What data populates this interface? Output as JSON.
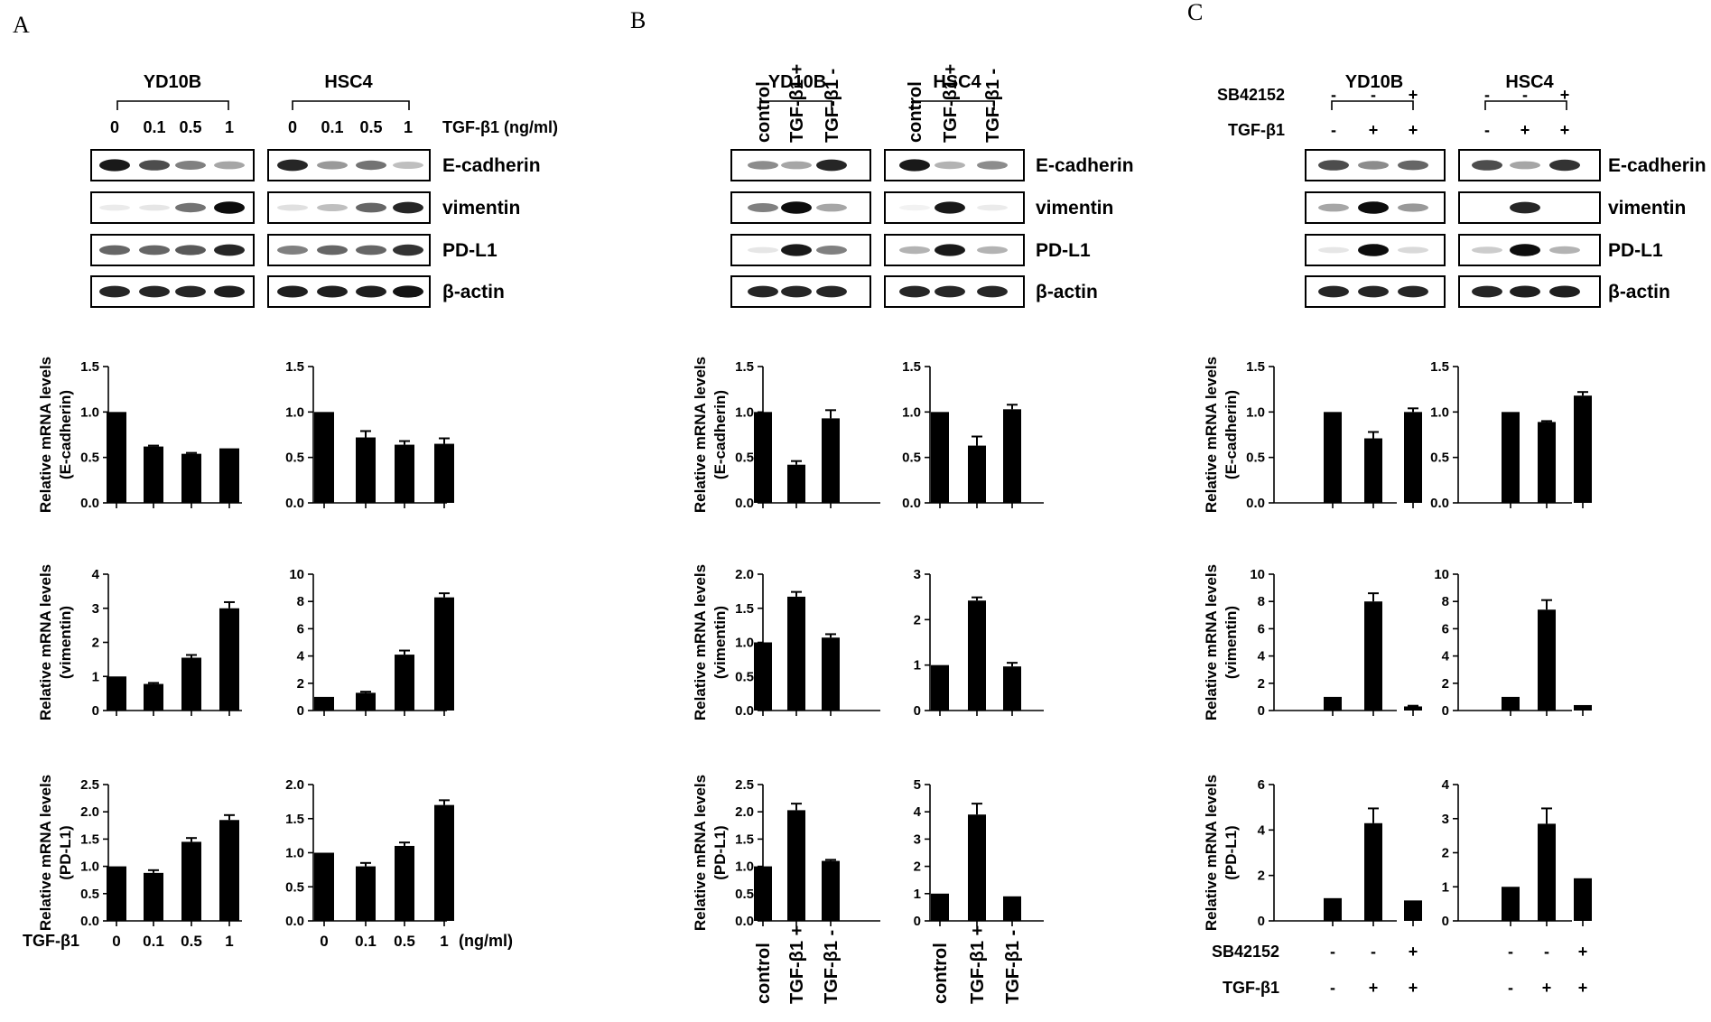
{
  "panels": [
    {
      "letter": "A",
      "celllines": [
        "YD10B",
        "HSC4"
      ],
      "header": {
        "kind": "dose",
        "row_label": "TGF-β1 (ng/ml)",
        "values": [
          "0",
          "0.1",
          "0.5",
          "1"
        ]
      },
      "blot_labels": [
        "E-cadherin",
        "vimentin",
        "PD-L1",
        "β-actin"
      ],
      "footer": {
        "kind": "dose",
        "left_label": "TGF-β1",
        "values": [
          "0",
          "0.1",
          "0.5",
          "1"
        ],
        "unit": "(ng/ml)"
      }
    },
    {
      "letter": "B",
      "celllines": [
        "YD10B",
        "HSC4"
      ],
      "header": {
        "kind": "rotated",
        "values": [
          "control",
          "TGF-β1 +",
          "TGF-β1 -"
        ]
      },
      "blot_labels": [
        "E-cadherin",
        "vimentin",
        "PD-L1",
        "β-actin"
      ],
      "footer": {
        "kind": "rotated",
        "values": [
          "control",
          "TGF-β1 +",
          "TGF-β1 -"
        ]
      }
    },
    {
      "letter": "C",
      "celllines": [
        "YD10B",
        "HSC4"
      ],
      "header": {
        "kind": "rows",
        "rows": [
          {
            "label": "SB42152",
            "values": [
              "-",
              "-",
              "+"
            ]
          },
          {
            "label": "TGF-β1",
            "values": [
              "-",
              "+",
              "+"
            ]
          }
        ]
      },
      "blot_labels": [
        "E-cadherin",
        "vimentin",
        "PD-L1",
        "β-actin"
      ],
      "footer": {
        "kind": "rows",
        "rows": [
          {
            "label": "SB42152",
            "values": [
              "-",
              "-",
              "+"
            ]
          },
          {
            "label": "TGF-β1",
            "values": [
              "-",
              "+",
              "+"
            ]
          }
        ]
      }
    }
  ],
  "chart_data": [
    {
      "type": "bar",
      "panel": "A",
      "cell_line": "YD10B",
      "ylabel_lines": [
        "Relative mRNA levels",
        "(E-cadherin)"
      ],
      "categories": [
        "0",
        "0.1",
        "0.5",
        "1"
      ],
      "values": [
        1.0,
        0.62,
        0.54,
        0.6
      ],
      "errors": [
        0,
        0.01,
        0.01,
        0
      ],
      "ylim": [
        0,
        1.5
      ],
      "yticks": [
        "0.0",
        "0.5",
        "1.0",
        "1.5"
      ]
    },
    {
      "type": "bar",
      "panel": "A",
      "cell_line": "HSC4",
      "ylabel_lines": [
        "Relative mRNA levels",
        "(E-cadherin)"
      ],
      "categories": [
        "0",
        "0.1",
        "0.5",
        "1"
      ],
      "values": [
        1.0,
        0.72,
        0.64,
        0.65
      ],
      "errors": [
        0,
        0.07,
        0.04,
        0.06
      ],
      "ylim": [
        0,
        1.5
      ],
      "yticks": [
        "0.0",
        "0.5",
        "1.0",
        "1.5"
      ]
    },
    {
      "type": "bar",
      "panel": "A",
      "cell_line": "YD10B",
      "ylabel_lines": [
        "Relative mRNA levels",
        "(vimentin)"
      ],
      "categories": [
        "0",
        "0.1",
        "0.5",
        "1"
      ],
      "values": [
        1.0,
        0.78,
        1.55,
        3.0
      ],
      "errors": [
        0,
        0.03,
        0.08,
        0.18
      ],
      "ylim": [
        0,
        4
      ],
      "yticks": [
        "0",
        "1",
        "2",
        "3",
        "4"
      ]
    },
    {
      "type": "bar",
      "panel": "A",
      "cell_line": "HSC4",
      "ylabel_lines": [
        "Relative mRNA levels",
        "(vimentin)"
      ],
      "categories": [
        "0",
        "0.1",
        "0.5",
        "1"
      ],
      "values": [
        1.0,
        1.3,
        4.1,
        8.3
      ],
      "errors": [
        0,
        0.08,
        0.3,
        0.3
      ],
      "ylim": [
        0,
        10
      ],
      "yticks": [
        "0",
        "2",
        "4",
        "6",
        "8",
        "10"
      ]
    },
    {
      "type": "bar",
      "panel": "A",
      "cell_line": "YD10B",
      "ylabel_lines": [
        "Relative mRNA levels",
        "(PD-L1)"
      ],
      "categories": [
        "0",
        "0.1",
        "0.5",
        "1"
      ],
      "values": [
        1.0,
        0.88,
        1.45,
        1.85
      ],
      "errors": [
        0,
        0.05,
        0.07,
        0.09
      ],
      "ylim": [
        0,
        2.5
      ],
      "yticks": [
        "0.0",
        "0.5",
        "1.0",
        "1.5",
        "2.0",
        "2.5"
      ]
    },
    {
      "type": "bar",
      "panel": "A",
      "cell_line": "HSC4",
      "ylabel_lines": [
        "Relative mRNA levels",
        "(PD-L1)"
      ],
      "categories": [
        "0",
        "0.1",
        "0.5",
        "1"
      ],
      "values": [
        1.0,
        0.8,
        1.1,
        1.7
      ],
      "errors": [
        0,
        0.05,
        0.05,
        0.07
      ],
      "ylim": [
        0,
        2.0
      ],
      "yticks": [
        "0.0",
        "0.5",
        "1.0",
        "1.5",
        "2.0"
      ]
    },
    {
      "type": "bar",
      "panel": "B",
      "cell_line": "YD10B",
      "ylabel_lines": [
        "Relative mRNA levels",
        "(E-cadherin)"
      ],
      "categories": [
        "control",
        "TGF-β1 +",
        "TGF-β1 -"
      ],
      "values": [
        1.0,
        0.42,
        0.93
      ],
      "errors": [
        0,
        0.04,
        0.09
      ],
      "ylim": [
        0,
        1.5
      ],
      "yticks": [
        "0.0",
        "0.5",
        "1.0",
        "1.5"
      ]
    },
    {
      "type": "bar",
      "panel": "B",
      "cell_line": "HSC4",
      "ylabel_lines": [
        "Relative mRNA levels",
        "(E-cadherin)"
      ],
      "categories": [
        "control",
        "TGF-β1 +",
        "TGF-β1 -"
      ],
      "values": [
        1.0,
        0.63,
        1.03
      ],
      "errors": [
        0,
        0.1,
        0.05
      ],
      "ylim": [
        0,
        1.5
      ],
      "yticks": [
        "0.0",
        "0.5",
        "1.0",
        "1.5"
      ]
    },
    {
      "type": "bar",
      "panel": "B",
      "cell_line": "YD10B",
      "ylabel_lines": [
        "Relative mRNA levels",
        "(vimentin)"
      ],
      "categories": [
        "control",
        "TGF-β1 +",
        "TGF-β1 -"
      ],
      "values": [
        1.0,
        1.67,
        1.07
      ],
      "errors": [
        0,
        0.07,
        0.05
      ],
      "ylim": [
        0,
        2.0
      ],
      "yticks": [
        "0.0",
        "0.5",
        "1.0",
        "1.5",
        "2.0"
      ]
    },
    {
      "type": "bar",
      "panel": "B",
      "cell_line": "HSC4",
      "ylabel_lines": [
        "Relative mRNA levels",
        "(vimentin)"
      ],
      "categories": [
        "control",
        "TGF-β1 +",
        "TGF-β1 -"
      ],
      "values": [
        1.0,
        2.42,
        0.97
      ],
      "errors": [
        0,
        0.07,
        0.08
      ],
      "ylim": [
        0,
        3
      ],
      "yticks": [
        "0",
        "1",
        "2",
        "3"
      ]
    },
    {
      "type": "bar",
      "panel": "B",
      "cell_line": "YD10B",
      "ylabel_lines": [
        "Relative mRNA levels",
        "(PD-L1)"
      ],
      "categories": [
        "control",
        "TGF-β1 +",
        "TGF-β1 -"
      ],
      "values": [
        1.0,
        2.03,
        1.1
      ],
      "errors": [
        0,
        0.12,
        0.02
      ],
      "ylim": [
        0,
        2.5
      ],
      "yticks": [
        "0.0",
        "0.5",
        "1.0",
        "1.5",
        "2.0",
        "2.5"
      ]
    },
    {
      "type": "bar",
      "panel": "B",
      "cell_line": "HSC4",
      "ylabel_lines": [
        "Relative mRNA levels",
        "(PD-L1)"
      ],
      "categories": [
        "control",
        "TGF-β1 +",
        "TGF-β1 -"
      ],
      "values": [
        1.0,
        3.9,
        0.9
      ],
      "errors": [
        0,
        0.4,
        0
      ],
      "ylim": [
        0,
        5
      ],
      "yticks": [
        "0",
        "1",
        "2",
        "3",
        "4",
        "5"
      ]
    },
    {
      "type": "bar",
      "panel": "C",
      "cell_line": "YD10B",
      "ylabel_lines": [
        "Relative mRNA levels",
        "(E-cadherin)"
      ],
      "categories": [
        "SB42152 - / TGF-β1 -",
        "SB42152 - / TGF-β1 +",
        "SB42152 + / TGF-β1 +"
      ],
      "values": [
        1.0,
        0.71,
        1.0
      ],
      "errors": [
        0,
        0.07,
        0.04
      ],
      "ylim": [
        0,
        1.5
      ],
      "yticks": [
        "0.0",
        "0.5",
        "1.0",
        "1.5"
      ]
    },
    {
      "type": "bar",
      "panel": "C",
      "cell_line": "HSC4",
      "ylabel_lines": [
        "Relative mRNA levels",
        "(E-cadherin)"
      ],
      "categories": [
        "SB42152 - / TGF-β1 -",
        "SB42152 - / TGF-β1 +",
        "SB42152 + / TGF-β1 +"
      ],
      "values": [
        1.0,
        0.89,
        1.18
      ],
      "errors": [
        0,
        0.01,
        0.04
      ],
      "ylim": [
        0,
        1.5
      ],
      "yticks": [
        "0.0",
        "0.5",
        "1.0",
        "1.5"
      ]
    },
    {
      "type": "bar",
      "panel": "C",
      "cell_line": "YD10B",
      "ylabel_lines": [
        "Relative mRNA levels",
        "(vimentin)"
      ],
      "categories": [
        "SB42152 - / TGF-β1 -",
        "SB42152 - / TGF-β1 +",
        "SB42152 + / TGF-β1 +"
      ],
      "values": [
        1.0,
        8.0,
        0.3
      ],
      "errors": [
        0,
        0.6,
        0.05
      ],
      "ylim": [
        0,
        10
      ],
      "yticks": [
        "0",
        "2",
        "4",
        "6",
        "8",
        "10"
      ]
    },
    {
      "type": "bar",
      "panel": "C",
      "cell_line": "HSC4",
      "ylabel_lines": [
        "Relative mRNA levels",
        "(vimentin)"
      ],
      "categories": [
        "SB42152 - / TGF-β1 -",
        "SB42152 - / TGF-β1 +",
        "SB42152 + / TGF-β1 +"
      ],
      "values": [
        1.0,
        7.4,
        0.4
      ],
      "errors": [
        0,
        0.7,
        0
      ],
      "ylim": [
        0,
        10
      ],
      "yticks": [
        "0",
        "2",
        "4",
        "6",
        "8",
        "10"
      ]
    },
    {
      "type": "bar",
      "panel": "C",
      "cell_line": "YD10B",
      "ylabel_lines": [
        "Relative mRNA levels",
        "(PD-L1)"
      ],
      "categories": [
        "SB42152 - / TGF-β1 -",
        "SB42152 - / TGF-β1 +",
        "SB42152 + / TGF-β1 +"
      ],
      "values": [
        1.0,
        4.3,
        0.9
      ],
      "errors": [
        0,
        0.65,
        0
      ],
      "ylim": [
        0,
        6
      ],
      "yticks": [
        "0",
        "2",
        "4",
        "6"
      ]
    },
    {
      "type": "bar",
      "panel": "C",
      "cell_line": "HSC4",
      "ylabel_lines": [
        "Relative mRNA levels",
        "(PD-L1)"
      ],
      "categories": [
        "SB42152 - / TGF-β1 -",
        "SB42152 - / TGF-β1 +",
        "SB42152 + / TGF-β1 +"
      ],
      "values": [
        1.0,
        2.85,
        1.25
      ],
      "errors": [
        0,
        0.45,
        0
      ],
      "ylim": [
        0,
        4
      ],
      "yticks": [
        "0",
        "1",
        "2",
        "3",
        "4"
      ]
    }
  ]
}
